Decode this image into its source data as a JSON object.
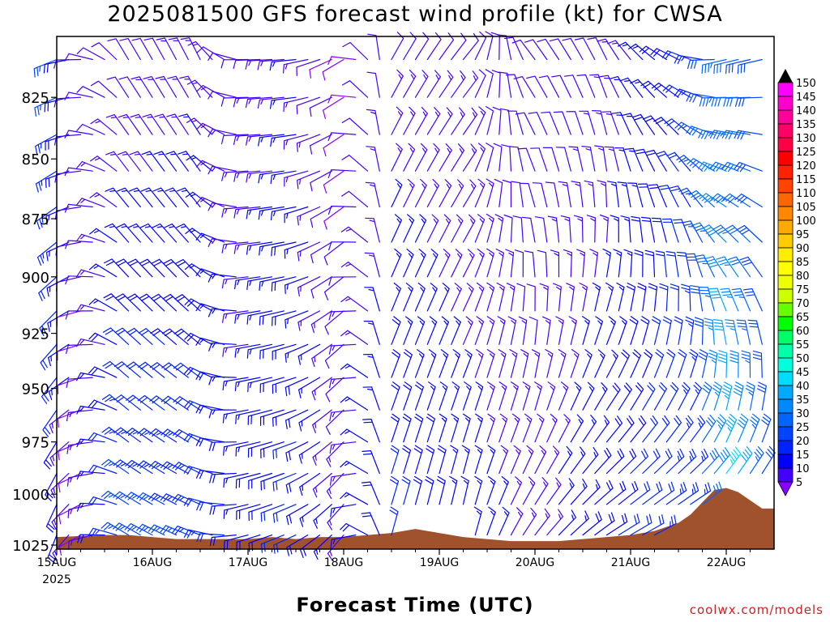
{
  "title": "2025081500 GFS forecast wind profile (kt) for CWSA",
  "xlabel": "Forecast Time (UTC)",
  "credit": "coolwx.com/models",
  "chart_data": {
    "type": "wind-barb-profile",
    "title": "2025081500 GFS forecast wind profile (kt) for CWSA",
    "xlabel": "Forecast Time (UTC)",
    "ylabel": "",
    "x_ticks": [
      "15AUG",
      "16AUG",
      "17AUG",
      "18AUG",
      "19AUG",
      "20AUG",
      "21AUG",
      "22AUG"
    ],
    "x_year": "2025",
    "x_range_hours": [
      0,
      180
    ],
    "y_ticks": [
      825,
      850,
      875,
      900,
      925,
      950,
      975,
      1000,
      1025
    ],
    "y_range_hpa": [
      801,
      1027
    ],
    "y_scale": "pressure",
    "levels_hpa": [
      810,
      825,
      840,
      855,
      870,
      885,
      900,
      915,
      930,
      945,
      960,
      975,
      990,
      1005,
      1020
    ],
    "times_hours": [
      0,
      3,
      6,
      9,
      12,
      15,
      18,
      21,
      24,
      27,
      30,
      33,
      36,
      39,
      42,
      45,
      48,
      51,
      54,
      57,
      60,
      63,
      66,
      69,
      72,
      75,
      78,
      81,
      84,
      87,
      90,
      93,
      96,
      99,
      102,
      105,
      108,
      111,
      114,
      117,
      120,
      123,
      126,
      129,
      132,
      135,
      138,
      141,
      144,
      147,
      150,
      153,
      156,
      159,
      162,
      165,
      168,
      171,
      174,
      177
    ],
    "wind_keyframes": [
      {
        "hour": 0,
        "dir_low": 200,
        "dir_high": 250,
        "spd_low": 18,
        "spd_high": 26
      },
      {
        "hour": 6,
        "dir_low": 240,
        "dir_high": 270,
        "spd_low": 8,
        "spd_high": 12
      },
      {
        "hour": 18,
        "dir_low": 300,
        "dir_high": 330,
        "spd_low": 28,
        "spd_high": 10
      },
      {
        "hour": 36,
        "dir_low": 290,
        "dir_high": 335,
        "spd_low": 25,
        "spd_high": 13
      },
      {
        "hour": 48,
        "dir_low": 255,
        "dir_high": 270,
        "spd_low": 18,
        "spd_high": 11
      },
      {
        "hour": 60,
        "dir_low": 245,
        "dir_high": 265,
        "spd_low": 22,
        "spd_high": 15
      },
      {
        "hour": 72,
        "dir_low": 220,
        "dir_high": 240,
        "spd_low": 14,
        "spd_high": 8
      },
      {
        "hour": 84,
        "dir_low": 15,
        "dir_high": 30,
        "spd_low": 22,
        "spd_high": 12
      },
      {
        "hour": 102,
        "dir_low": 10,
        "dir_high": 40,
        "spd_low": 17,
        "spd_high": 12
      },
      {
        "hour": 120,
        "dir_low": 40,
        "dir_high": 320,
        "spd_low": 14,
        "spd_high": 10
      },
      {
        "hour": 138,
        "dir_low": 60,
        "dir_high": 330,
        "spd_low": 20,
        "spd_high": 12
      },
      {
        "hour": 159,
        "dir_low": 70,
        "dir_high": 285,
        "spd_low": 25,
        "spd_high": 20
      },
      {
        "hour": 168,
        "dir_low": 65,
        "dir_high": 250,
        "spd_low": 48,
        "spd_high": 32
      },
      {
        "hour": 177,
        "dir_low": 60,
        "dir_high": 250,
        "spd_low": 30,
        "spd_high": 28
      }
    ],
    "terrain_surface_hpa": [
      {
        "hour": 0,
        "p": 1021
      },
      {
        "hour": 12,
        "p": 1020
      },
      {
        "hour": 18,
        "p": 1020
      },
      {
        "hour": 24,
        "p": 1021
      },
      {
        "hour": 30,
        "p": 1022
      },
      {
        "hour": 48,
        "p": 1022
      },
      {
        "hour": 54,
        "p": 1021
      },
      {
        "hour": 60,
        "p": 1022
      },
      {
        "hour": 66,
        "p": 1021
      },
      {
        "hour": 72,
        "p": 1021
      },
      {
        "hour": 84,
        "p": 1019
      },
      {
        "hour": 90,
        "p": 1017
      },
      {
        "hour": 96,
        "p": 1019
      },
      {
        "hour": 102,
        "p": 1021
      },
      {
        "hour": 108,
        "p": 1022
      },
      {
        "hour": 114,
        "p": 1023
      },
      {
        "hour": 126,
        "p": 1023
      },
      {
        "hour": 132,
        "p": 1022
      },
      {
        "hour": 138,
        "p": 1021
      },
      {
        "hour": 144,
        "p": 1020
      },
      {
        "hour": 150,
        "p": 1018
      },
      {
        "hour": 156,
        "p": 1014
      },
      {
        "hour": 159,
        "p": 1010
      },
      {
        "hour": 162,
        "p": 1004
      },
      {
        "hour": 165,
        "p": 998
      },
      {
        "hour": 168,
        "p": 997
      },
      {
        "hour": 171,
        "p": 999
      },
      {
        "hour": 174,
        "p": 1003
      },
      {
        "hour": 177,
        "p": 1007
      },
      {
        "hour": 180,
        "p": 1007
      }
    ],
    "terrain_color": "#a0522d",
    "colorbar": {
      "labels": [
        150,
        145,
        140,
        135,
        130,
        125,
        120,
        115,
        110,
        105,
        100,
        95,
        90,
        85,
        80,
        75,
        70,
        65,
        60,
        55,
        50,
        45,
        40,
        35,
        30,
        25,
        20,
        15,
        10,
        5
      ],
      "colors": [
        "#ff00ff",
        "#ff00cc",
        "#ff0099",
        "#ff0066",
        "#ff0044",
        "#ff0000",
        "#ff2200",
        "#ff4400",
        "#ff6600",
        "#ff8800",
        "#ffaa00",
        "#ffcc00",
        "#ffee00",
        "#ffff00",
        "#eeff00",
        "#ccff00",
        "#66ff00",
        "#00ff00",
        "#00ff66",
        "#00ffaa",
        "#00ffdd",
        "#00ddff",
        "#00aaff",
        "#0088ff",
        "#0066ff",
        "#0044ff",
        "#0022ff",
        "#0000ff",
        "#4400ff",
        "#8800ff"
      ]
    }
  }
}
